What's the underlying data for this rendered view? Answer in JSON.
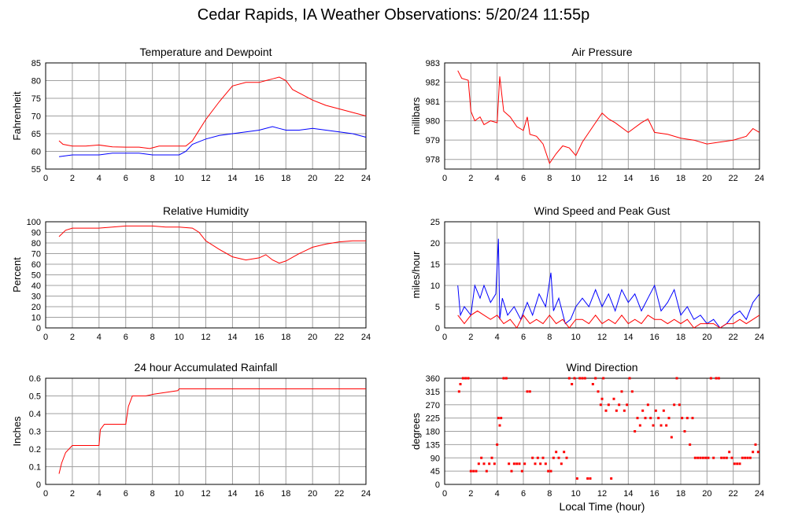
{
  "page_title": "Cedar Rapids, IA Weather Observations: 5/20/24 11:55p",
  "x_axis_label": "Local Time (hour)",
  "x_ticks": [
    "2",
    "4",
    "6",
    "8",
    "10",
    "12",
    "14",
    "16",
    "18",
    "20",
    "22",
    "24"
  ],
  "colors": {
    "red": "#ff0000",
    "blue": "#0000ff",
    "grid": "#a0a0a0",
    "axis": "#000000"
  },
  "chart_data": [
    {
      "type": "line",
      "title": "Temperature and Dewpoint",
      "ylabel": "Fahrenheit",
      "xlim": [
        0,
        24
      ],
      "ylim": [
        55,
        85
      ],
      "yticks": [
        55,
        60,
        65,
        70,
        75,
        80,
        85
      ],
      "grid": true,
      "series": [
        {
          "color": "#ff0000",
          "x": [
            1,
            1.3,
            2,
            3,
            4,
            5,
            6,
            7,
            7.8,
            8.5,
            9.5,
            10.5,
            11,
            12,
            13,
            14,
            15,
            16,
            16.5,
            17,
            17.5,
            18,
            18.5,
            19,
            20,
            21,
            22,
            23,
            24
          ],
          "y": [
            63,
            62,
            61.5,
            61.5,
            61.8,
            61.3,
            61.2,
            61.2,
            60.8,
            61.5,
            61.5,
            61.5,
            63,
            69,
            74,
            78.5,
            79.5,
            79.5,
            80,
            80.5,
            81,
            80,
            77.5,
            76.5,
            74.5,
            73,
            72,
            71,
            70
          ]
        },
        {
          "color": "#0000ff",
          "x": [
            1,
            2,
            3,
            4,
            5,
            6,
            7,
            8,
            9,
            10,
            10.5,
            11,
            12,
            13,
            14,
            15,
            16,
            17,
            17.5,
            18,
            19,
            20,
            21,
            22,
            23,
            24
          ],
          "y": [
            58.5,
            59,
            59,
            59,
            59.5,
            59.5,
            59.5,
            59,
            59,
            59,
            60,
            62,
            63.5,
            64.5,
            65,
            65.5,
            66,
            67,
            66.5,
            66,
            66,
            66.5,
            66,
            65.5,
            65,
            64
          ]
        }
      ]
    },
    {
      "type": "line",
      "title": "Air Pressure",
      "ylabel": "millibars",
      "xlim": [
        0,
        24
      ],
      "ylim": [
        977.5,
        983
      ],
      "yticks": [
        978,
        979,
        980,
        981,
        982,
        983
      ],
      "grid": true,
      "series": [
        {
          "color": "#ff0000",
          "x": [
            1,
            1.3,
            1.8,
            2,
            2.3,
            2.7,
            3,
            3.5,
            4,
            4.2,
            4.5,
            5,
            5.5,
            6,
            6.3,
            6.5,
            7,
            7.5,
            8,
            8.5,
            9,
            9.5,
            10,
            10.5,
            11,
            12,
            12.5,
            13,
            14,
            15,
            15.5,
            16,
            17,
            18,
            19,
            20,
            21,
            22,
            23,
            23.5,
            24
          ],
          "y": [
            982.6,
            982.2,
            982.1,
            980.5,
            980,
            980.2,
            979.8,
            980,
            979.9,
            982.3,
            980.5,
            980.2,
            979.7,
            979.5,
            980.2,
            979.3,
            979.2,
            978.8,
            977.8,
            978.3,
            978.7,
            978.6,
            978.2,
            978.9,
            979.4,
            980.4,
            980.1,
            979.9,
            979.4,
            979.9,
            980.1,
            979.4,
            979.3,
            979.1,
            979,
            978.8,
            978.9,
            979,
            979.2,
            979.6,
            979.4
          ]
        }
      ]
    },
    {
      "type": "line",
      "title": "Relative Humidity",
      "ylabel": "Percent",
      "xlim": [
        0,
        24
      ],
      "ylim": [
        0,
        100
      ],
      "yticks": [
        0,
        10,
        20,
        30,
        40,
        50,
        60,
        70,
        80,
        90,
        100
      ],
      "grid": true,
      "series": [
        {
          "color": "#ff0000",
          "x": [
            1,
            1.5,
            2,
            3,
            4,
            5,
            6,
            7,
            8,
            9,
            10,
            11,
            11.5,
            12,
            13,
            14,
            15,
            16,
            16.5,
            17,
            17.5,
            18,
            19,
            20,
            21,
            22,
            23,
            24
          ],
          "y": [
            86,
            92,
            94,
            94,
            94,
            95,
            96,
            96,
            96,
            95,
            95,
            94,
            90,
            82,
            74,
            67,
            64,
            66,
            69,
            64,
            61,
            63,
            70,
            76,
            79,
            81,
            82,
            82
          ]
        }
      ]
    },
    {
      "type": "line",
      "title": "Wind Speed and Peak Gust",
      "ylabel": "miles/hour",
      "xlim": [
        0,
        24
      ],
      "ylim": [
        0,
        25
      ],
      "yticks": [
        0,
        5,
        10,
        15,
        20,
        25
      ],
      "grid": true,
      "series": [
        {
          "color": "#0000ff",
          "x": [
            1,
            1.2,
            1.5,
            2,
            2.3,
            2.7,
            3,
            3.5,
            3.9,
            4.1,
            4.2,
            4.4,
            4.8,
            5.3,
            5.8,
            6.3,
            6.7,
            7.2,
            7.7,
            8.1,
            8.3,
            8.7,
            9.2,
            9.6,
            10,
            10.5,
            11,
            11.5,
            12,
            12.5,
            13,
            13.5,
            14,
            14.5,
            15,
            15.5,
            16,
            16.5,
            17,
            17.5,
            18,
            18.5,
            19,
            19.5,
            20,
            20.5,
            21,
            21.5,
            22,
            22.5,
            23,
            23.5,
            24
          ],
          "y": [
            10,
            3,
            5,
            3,
            10,
            7,
            10,
            6,
            8,
            21,
            2,
            7,
            3,
            5,
            2,
            6,
            3,
            8,
            5,
            13,
            4,
            7,
            1,
            2,
            5,
            7,
            5,
            9,
            5,
            8,
            4,
            9,
            6,
            8,
            4,
            7,
            10,
            4,
            6,
            9,
            3,
            5,
            2,
            3,
            1,
            2,
            0,
            1,
            3,
            4,
            2,
            6,
            8
          ]
        },
        {
          "color": "#ff0000",
          "x": [
            1,
            1.5,
            2,
            2.5,
            3,
            3.5,
            4,
            4.5,
            5,
            5.5,
            6,
            6.5,
            7,
            7.5,
            8,
            8.5,
            9,
            9.5,
            10,
            10.5,
            11,
            11.5,
            12,
            12.5,
            13,
            13.5,
            14,
            14.5,
            15,
            15.5,
            16,
            16.5,
            17,
            17.5,
            18,
            18.5,
            19,
            19.5,
            20,
            20.5,
            21,
            21.5,
            22,
            22.5,
            23,
            23.5,
            24
          ],
          "y": [
            3,
            1,
            3,
            4,
            3,
            2,
            3,
            1,
            2,
            0,
            3,
            1,
            2,
            1,
            3,
            1,
            2,
            0,
            2,
            2,
            1,
            3,
            1,
            2,
            1,
            3,
            1,
            2,
            1,
            3,
            2,
            2,
            1,
            2,
            1,
            2,
            0,
            1,
            1,
            1,
            0,
            1,
            1,
            2,
            1,
            2,
            3
          ]
        }
      ]
    },
    {
      "type": "line",
      "title": "24 hour Accumulated Rainfall",
      "ylabel": "Inches",
      "xlim": [
        0,
        24
      ],
      "ylim": [
        0,
        0.6
      ],
      "yticks": [
        0,
        0.1,
        0.2,
        0.3,
        0.4,
        0.5,
        0.6
      ],
      "grid": true,
      "series": [
        {
          "color": "#ff0000",
          "x": [
            1,
            1.2,
            1.5,
            2,
            4,
            4.1,
            4.4,
            6,
            6.2,
            6.5,
            7.5,
            8.1,
            9,
            9.9,
            10,
            24
          ],
          "y": [
            0.06,
            0.12,
            0.18,
            0.22,
            0.22,
            0.31,
            0.34,
            0.34,
            0.44,
            0.5,
            0.5,
            0.51,
            0.52,
            0.53,
            0.54,
            0.54
          ]
        }
      ]
    },
    {
      "type": "scatter",
      "title": "Wind Direction",
      "ylabel": "degrees",
      "xlim": [
        0,
        24
      ],
      "ylim": [
        0,
        360
      ],
      "yticks": [
        0,
        45,
        90,
        135,
        180,
        225,
        270,
        315,
        360
      ],
      "grid": true,
      "series": [
        {
          "color": "#ff0000",
          "x": [
            1.1,
            1.2,
            1.4,
            1.6,
            1.8,
            2.0,
            2.2,
            2.4,
            2.6,
            2.8,
            3.0,
            3.2,
            3.4,
            3.6,
            3.8,
            4.0,
            4.1,
            4.2,
            4.3,
            4.5,
            4.7,
            4.9,
            5.1,
            5.3,
            5.5,
            5.7,
            5.9,
            6.1,
            6.3,
            6.5,
            6.7,
            6.9,
            7.1,
            7.3,
            7.5,
            7.7,
            7.9,
            8.1,
            8.3,
            8.5,
            8.7,
            8.9,
            9.1,
            9.3,
            9.5,
            9.7,
            9.9,
            10.1,
            10.3,
            10.5,
            10.7,
            10.9,
            11.1,
            11.3,
            11.5,
            11.7,
            11.9,
            12.0,
            12.1,
            12.3,
            12.5,
            12.7,
            12.9,
            13.1,
            13.3,
            13.5,
            13.7,
            13.9,
            14.1,
            14.3,
            14.5,
            14.7,
            14.9,
            15.1,
            15.3,
            15.5,
            15.7,
            15.9,
            16.1,
            16.3,
            16.5,
            16.7,
            16.9,
            17.1,
            17.3,
            17.5,
            17.7,
            17.9,
            18.1,
            18.3,
            18.5,
            18.7,
            18.9,
            19.1,
            19.3,
            19.5,
            19.7,
            19.9,
            20.1,
            20.3,
            20.5,
            20.7,
            20.9,
            21.1,
            21.3,
            21.5,
            21.7,
            21.9,
            22.1,
            22.3,
            22.5,
            22.7,
            22.9,
            23.1,
            23.3,
            23.5,
            23.7,
            23.9
          ],
          "y": [
            315,
            340,
            360,
            360,
            360,
            45,
            45,
            45,
            70,
            90,
            70,
            45,
            70,
            90,
            70,
            135,
            225,
            200,
            225,
            360,
            360,
            70,
            45,
            70,
            70,
            70,
            45,
            70,
            315,
            315,
            90,
            70,
            90,
            70,
            90,
            70,
            45,
            45,
            90,
            110,
            90,
            70,
            110,
            90,
            360,
            340,
            360,
            20,
            360,
            360,
            360,
            20,
            20,
            340,
            360,
            315,
            270,
            290,
            360,
            250,
            270,
            20,
            290,
            250,
            270,
            315,
            250,
            270,
            360,
            315,
            180,
            225,
            200,
            250,
            225,
            270,
            225,
            200,
            250,
            225,
            200,
            250,
            200,
            225,
            160,
            270,
            360,
            270,
            225,
            180,
            225,
            135,
            225,
            90,
            90,
            90,
            90,
            90,
            90,
            360,
            90,
            360,
            360,
            90,
            90,
            90,
            110,
            90,
            70,
            70,
            70,
            90,
            90,
            90,
            90,
            110,
            135,
            110
          ]
        }
      ]
    }
  ]
}
